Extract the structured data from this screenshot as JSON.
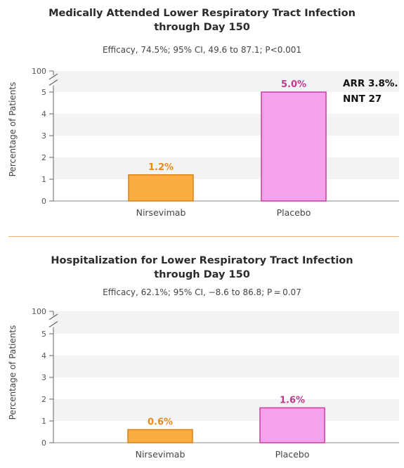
{
  "charts": [
    {
      "title_line1": "Medically Attended Lower Respiratory Tract Infection",
      "title_line2": "through Day 150",
      "subtitle": "Efficacy, 74.5%; 95% CI, 49.6 to 87.1; P<0.001"
    },
    {
      "title_line1": "Hospitalization for Lower Respiratory Tract Infection",
      "title_line2": "through Day 150",
      "subtitle": "Efficacy, 62.1%; 95% CI, −8.6 to 86.8; P = 0.07"
    }
  ],
  "annotation": {
    "line1": "ARR 3.8%.",
    "line2": "NNT 27"
  },
  "colors": {
    "nirsevimab_fill": "#fbad3f",
    "nirsevimab_stroke": "#d9821c",
    "nirsevimab_label": "#e8891c",
    "placebo_fill": "#f5a1ec",
    "placebo_stroke": "#c83c9e",
    "placebo_label": "#c2378f",
    "band_light": "#f1f3f5",
    "band_white": "#ffffff"
  },
  "chart_data": [
    {
      "type": "bar",
      "title": "Medically Attended Lower Respiratory Tract Infection through Day 150",
      "categories": [
        "Nirsevimab",
        "Placebo"
      ],
      "values": [
        1.2,
        5.0
      ],
      "data_labels": [
        "1.2%",
        "5.0%"
      ],
      "ylabel": "Percentage of Patients",
      "yticks": [
        "0",
        "1",
        "2",
        "3",
        "4",
        "5"
      ],
      "ybreak_label": "100",
      "ylim": [
        0,
        5.5
      ],
      "grid": "alternating bands"
    },
    {
      "type": "bar",
      "title": "Hospitalization for Lower Respiratory Tract Infection through Day 150",
      "categories": [
        "Nirsevimab",
        "Placebo"
      ],
      "values": [
        0.6,
        1.6
      ],
      "data_labels": [
        "0.6%",
        "1.6%"
      ],
      "ylabel": "Percentage of Patients",
      "yticks": [
        "0",
        "1",
        "2",
        "3",
        "4",
        "5"
      ],
      "ybreak_label": "100",
      "ylim": [
        0,
        5.5
      ],
      "grid": "alternating bands"
    }
  ]
}
